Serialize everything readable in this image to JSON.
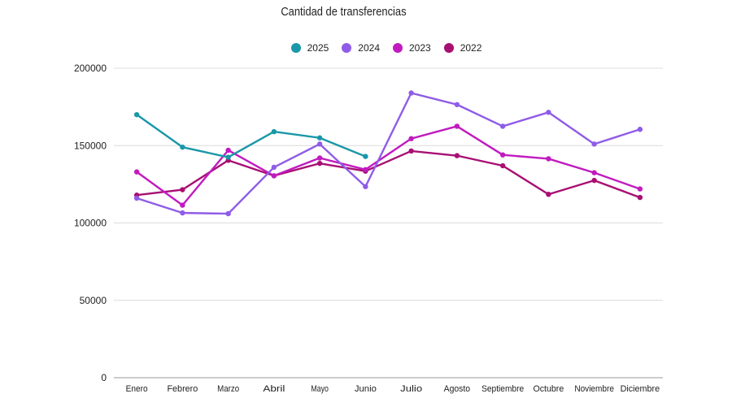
{
  "chart_data": {
    "type": "line",
    "title": "Cantidad de transferencias",
    "xlabel": "",
    "ylabel": "",
    "categories": [
      "Enero",
      "Febrero",
      "Marzo",
      "Abril",
      "Mayo",
      "Junio",
      "Julio",
      "Agosto",
      "Septiembre",
      "Octubre",
      "Noviembre",
      "Diciembre"
    ],
    "ylim": [
      0,
      200000
    ],
    "yticks": [
      "0",
      "50000",
      "100000",
      "150000",
      "200000"
    ],
    "grid": true,
    "legend_position": "top-center",
    "series": [
      {
        "name": "2025",
        "color": "#1a97a8",
        "values": [
          170000,
          149000,
          142500,
          159000,
          155000,
          143000,
          null,
          null,
          null,
          null,
          null,
          null
        ]
      },
      {
        "name": "2024",
        "color": "#8f5ce8",
        "values": [
          116000,
          106500,
          106000,
          136000,
          151000,
          123500,
          184000,
          176500,
          162500,
          171500,
          151000,
          160500
        ]
      },
      {
        "name": "2023",
        "color": "#c11bbf",
        "values": [
          133000,
          111500,
          147000,
          130500,
          142000,
          134500,
          154500,
          162500,
          144000,
          141500,
          132500,
          122000
        ]
      },
      {
        "name": "2022",
        "color": "#a80f73",
        "values": [
          118000,
          121500,
          140500,
          130500,
          138500,
          133500,
          146500,
          143500,
          137000,
          118500,
          127500,
          116500
        ]
      }
    ]
  }
}
